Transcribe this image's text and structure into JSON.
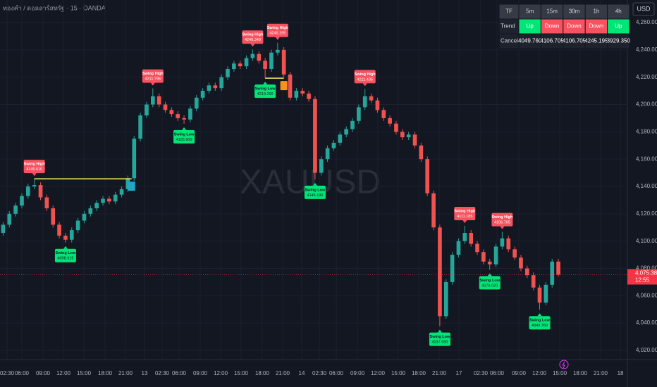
{
  "chart_data": {
    "type": "candlestick",
    "title": "ทองคำ / ดอลลาร์สหรัฐ · 15 · OANDA",
    "watermark": "XAUUSD",
    "currency": "USD",
    "up_color": "#26a69a",
    "down_color": "#ef5350",
    "grid": true,
    "ylim": [
      4013.8,
      4276.5
    ],
    "yticks": [
      {
        "value": 4020,
        "label": "4,020.000"
      },
      {
        "value": 4040,
        "label": "4,040.000"
      },
      {
        "value": 4060,
        "label": "4,060.000"
      },
      {
        "value": 4080,
        "label": "4,080.000"
      },
      {
        "value": 4100,
        "label": "4,100.000"
      },
      {
        "value": 4120,
        "label": "4,120.000"
      },
      {
        "value": 4140,
        "label": "4,140.000"
      },
      {
        "value": 4160,
        "label": "4,160.000"
      },
      {
        "value": 4180,
        "label": "4,180.000"
      },
      {
        "value": 4200,
        "label": "4,200.000"
      },
      {
        "value": 4220,
        "label": "4,220.000"
      },
      {
        "value": 4240,
        "label": "4,240.000"
      },
      {
        "value": 4260,
        "label": "4,260.000"
      }
    ],
    "xlim": [
      0,
      100
    ],
    "xticks": [
      {
        "value": 1.13,
        "label": "02:30"
      },
      {
        "value": 3.5,
        "label": "06:00"
      },
      {
        "value": 6.89,
        "label": "09:00"
      },
      {
        "value": 10.17,
        "label": "12:00"
      },
      {
        "value": 13.45,
        "label": "15:00"
      },
      {
        "value": 16.84,
        "label": "18:00"
      },
      {
        "value": 20.11,
        "label": "21:00"
      },
      {
        "value": 23.16,
        "label": "13"
      },
      {
        "value": 25.99,
        "label": "02:30"
      },
      {
        "value": 28.7,
        "label": "06:00"
      },
      {
        "value": 32.09,
        "label": "09:00"
      },
      {
        "value": 35.37,
        "label": "12:00"
      },
      {
        "value": 38.64,
        "label": "15:00"
      },
      {
        "value": 42.03,
        "label": "18:00"
      },
      {
        "value": 45.31,
        "label": "21:00"
      },
      {
        "value": 48.36,
        "label": "14"
      },
      {
        "value": 51.19,
        "label": "02:30"
      },
      {
        "value": 53.9,
        "label": "06:00"
      },
      {
        "value": 57.29,
        "label": "09:00"
      },
      {
        "value": 60.56,
        "label": "12:00"
      },
      {
        "value": 63.84,
        "label": "15:00"
      },
      {
        "value": 67.12,
        "label": "18:00"
      },
      {
        "value": 70.4,
        "label": "21:00"
      },
      {
        "value": 73.56,
        "label": "17"
      },
      {
        "value": 77.06,
        "label": "02:30"
      },
      {
        "value": 79.66,
        "label": "06:00"
      },
      {
        "value": 83.16,
        "label": "09:00"
      },
      {
        "value": 86.44,
        "label": "12:00"
      },
      {
        "value": 89.72,
        "label": "15:00"
      },
      {
        "value": 92.99,
        "label": "18:00"
      },
      {
        "value": 96.27,
        "label": "21:00"
      },
      {
        "value": 99.44,
        "label": "18"
      }
    ],
    "open": [
      4106,
      4112,
      4120,
      4126,
      4133,
      4140,
      4141,
      4132,
      4124,
      4112,
      4104,
      4101,
      4108,
      4115,
      4120,
      4124,
      4128,
      4131,
      4129,
      4134,
      4138,
      4146,
      4175,
      4192,
      4200,
      4206,
      4200,
      4196,
      4193,
      4190,
      4189,
      4197,
      4205,
      4210,
      4214,
      4212,
      4220,
      4226,
      4230,
      4228,
      4234,
      4237,
      4232,
      4226,
      4238,
      4240,
      4222,
      4205,
      4210,
      4208,
      4204,
      4150,
      4160,
      4168,
      4172,
      4178,
      4182,
      4188,
      4198,
      4206,
      4203,
      4196,
      4190,
      4186,
      4180,
      4176,
      4178,
      4170,
      4160,
      4135,
      4110,
      4045,
      4070,
      4090,
      4100,
      4106,
      4098,
      4092,
      4085,
      4083,
      4096,
      4102,
      4094,
      4088,
      4080,
      4075,
      4066,
      4055,
      4068,
      4085
    ],
    "high": [
      4114,
      4122,
      4128,
      4135,
      4142,
      4145.6,
      4143,
      4134,
      4126,
      4114,
      4106,
      4110,
      4117,
      4122,
      4126,
      4130,
      4133,
      4133,
      4136,
      4140,
      4148,
      4177,
      4194,
      4202,
      4211.8,
      4208,
      4202,
      4198,
      4195,
      4192,
      4199,
      4207,
      4212,
      4216,
      4216,
      4222,
      4228,
      4232,
      4232,
      4236,
      4240.3,
      4239,
      4234,
      4240,
      4245.2,
      4242,
      4224,
      4212,
      4212,
      4210,
      4206,
      4162,
      4170,
      4174,
      4180,
      4184,
      4190,
      4200,
      4211.4,
      4208,
      4205,
      4198,
      4192,
      4188,
      4182,
      4180,
      4180,
      4172,
      4162,
      4137,
      4112,
      4072,
      4092,
      4102,
      4111.2,
      4108,
      4100,
      4094,
      4087,
      4098,
      4106.7,
      4104,
      4096,
      4090,
      4082,
      4077,
      4068,
      4070,
      4087,
      4087
    ],
    "low": [
      4104,
      4110,
      4118,
      4124,
      4131,
      4138,
      4130,
      4122,
      4110,
      4102,
      4098.9,
      4099,
      4106,
      4113,
      4118,
      4122,
      4126,
      4127,
      4127,
      4132,
      4136,
      4144,
      4173,
      4190,
      4198,
      4198,
      4194,
      4191,
      4188,
      4185.9,
      4187,
      4195,
      4203,
      4208,
      4210,
      4210,
      4218,
      4224,
      4226,
      4226,
      4232,
      4230,
      4219.2,
      4224,
      4236,
      4220,
      4203,
      4203,
      4206,
      4202,
      4145.2,
      4148,
      4158,
      4166,
      4170,
      4176,
      4180,
      4186,
      4196,
      4201,
      4194,
      4188,
      4184,
      4178,
      4174,
      4174,
      4168,
      4158,
      4133,
      4108,
      4037.7,
      4043,
      4068,
      4088,
      4098,
      4096,
      4090,
      4083,
      4079,
      4081,
      4094,
      4092,
      4086,
      4078,
      4073,
      4064,
      4049.8,
      4053,
      4066,
      4074
    ],
    "close": [
      4112,
      4120,
      4126,
      4133,
      4140,
      4141,
      4132,
      4124,
      4112,
      4104,
      4101,
      4108,
      4115,
      4120,
      4124,
      4128,
      4131,
      4129,
      4134,
      4138,
      4146,
      4175,
      4192,
      4200,
      4206,
      4200,
      4196,
      4193,
      4190,
      4189,
      4197,
      4205,
      4210,
      4214,
      4212,
      4220,
      4226,
      4230,
      4228,
      4234,
      4237,
      4232,
      4226,
      4238,
      4240,
      4222,
      4205,
      4210,
      4208,
      4204,
      4150,
      4160,
      4168,
      4172,
      4178,
      4182,
      4188,
      4198,
      4206,
      4203,
      4196,
      4190,
      4186,
      4180,
      4176,
      4178,
      4170,
      4160,
      4135,
      4110,
      4045,
      4070,
      4090,
      4100,
      4106,
      4098,
      4092,
      4085,
      4083,
      4096,
      4102,
      4094,
      4088,
      4080,
      4075,
      4066,
      4055,
      4068,
      4085,
      4075.38
    ],
    "annotations": [
      {
        "text": "Swing High",
        "x": 5.5,
        "value": 4145.61,
        "value_label": "4145.610",
        "color": "#f7525f"
      },
      {
        "text": "Swing Low",
        "x": 10.5,
        "value": 4098.915,
        "value_label": "4098.915",
        "color": "#00e676"
      },
      {
        "text": "Swing High",
        "x": 24.5,
        "value": 4211.795,
        "value_label": "4211.795",
        "color": "#f7525f"
      },
      {
        "text": "Swing Low",
        "x": 29.5,
        "value": 4185.9,
        "value_label": "4185.900",
        "color": "#00e676"
      },
      {
        "text": "Swing High",
        "x": 40.5,
        "value": 4240.34,
        "value_label": "4240.340",
        "color": "#f7525f"
      },
      {
        "text": "Swing High",
        "x": 44.5,
        "value": 4245.195,
        "value_label": "4245.195",
        "color": "#f7525f"
      },
      {
        "text": "Swing Low",
        "x": 42.5,
        "value": 4219.25,
        "value_label": "4219.250",
        "color": "#00e676"
      },
      {
        "text": "Swing Low",
        "x": 50.5,
        "value": 4145.19,
        "value_label": "4145.190",
        "color": "#00e676"
      },
      {
        "text": "Swing High",
        "x": 58.5,
        "value": 4211.435,
        "value_label": "4211.435",
        "color": "#f7525f"
      },
      {
        "text": "Swing Low",
        "x": 70.5,
        "value": 4037.68,
        "value_label": "4037.680",
        "color": "#00e676"
      },
      {
        "text": "Swing High",
        "x": 74.5,
        "value": 4111.185,
        "value_label": "4111.185",
        "color": "#f7525f"
      },
      {
        "text": "Swing Low",
        "x": 78.5,
        "value": 4079.02,
        "value_label": "4079.020",
        "color": "#00e676"
      },
      {
        "text": "Swing High",
        "x": 80.5,
        "value": 4106.705,
        "value_label": "4106.705",
        "color": "#f7525f"
      },
      {
        "text": "Swing Low",
        "x": 86.5,
        "value": 4049.76,
        "value_label": "4049.760",
        "color": "#00e676"
      }
    ],
    "breaks": [
      {
        "from_x": 5.5,
        "to_x": 21.1,
        "value": 4145.61,
        "line_color": "#f5e663",
        "color": "#22a7c4"
      },
      {
        "from_x": 42.5,
        "to_x": 45.5,
        "value": 4219.25,
        "line_color": "#f5e663",
        "color": "#f7931a"
      }
    ],
    "last_price": {
      "value": 4075.38,
      "label": "4,075.380",
      "countdown": "12:55",
      "color": "#f23645"
    },
    "table": {
      "header": [
        "TF",
        "5m",
        "15m",
        "30m",
        "1h",
        "4h"
      ],
      "rows": [
        {
          "label": "Trend",
          "cells": [
            "Up",
            "Down",
            "Down",
            "Down",
            "Up"
          ],
          "colors": [
            "#00e676",
            "#f7525f",
            "#f7525f",
            "#f7525f",
            "#00e676"
          ]
        },
        {
          "label": "Cancel",
          "cells": [
            "4049.760",
            "4106.705",
            "4106.705",
            "4245.195",
            "3929.350"
          ],
          "colors": [
            "#1e222d",
            "#1e222d",
            "#1e222d",
            "#1e222d",
            "#1e222d"
          ]
        }
      ]
    }
  }
}
